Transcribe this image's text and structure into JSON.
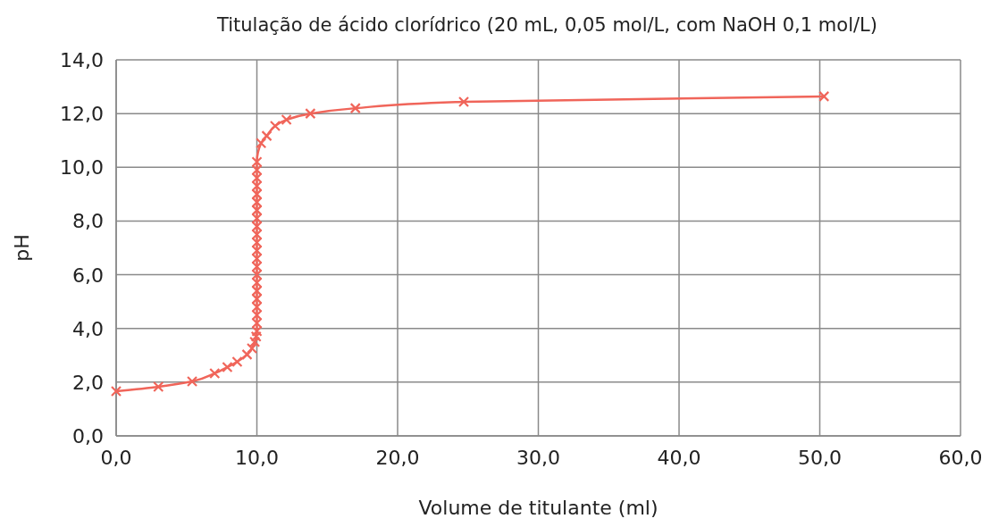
{
  "chart_data": {
    "type": "line",
    "title": "Titulação de ácido clorídrico (20 mL, 0,05 mol/L, com NaOH 0,1 mol/L)",
    "xlabel": "Volume de titulante (ml)",
    "ylabel": "pH",
    "xlim": [
      0,
      60
    ],
    "xticks": [
      {
        "value": 0,
        "label": "0,0"
      },
      {
        "value": 10,
        "label": "10,0"
      },
      {
        "value": 20,
        "label": "20,0"
      },
      {
        "value": 30,
        "label": "30,0"
      },
      {
        "value": 40,
        "label": "40,0"
      },
      {
        "value": 50,
        "label": "50,0"
      },
      {
        "value": 60,
        "label": "60,0"
      }
    ],
    "ylim": [
      0,
      14
    ],
    "yticks": [
      {
        "value": 0,
        "label": "0,0"
      },
      {
        "value": 2,
        "label": "2,0"
      },
      {
        "value": 4,
        "label": "4,0"
      },
      {
        "value": 6,
        "label": "6,0"
      },
      {
        "value": 8,
        "label": "8,0"
      },
      {
        "value": 10,
        "label": "10,0"
      },
      {
        "value": 12,
        "label": "12,0"
      },
      {
        "value": 14,
        "label": "14,0"
      }
    ],
    "grid": true,
    "marker": "cross",
    "line_style": "solid",
    "series": [
      {
        "color": "#f0655a",
        "x": [
          0,
          3.0,
          5.4,
          7.0,
          7.9,
          8.6,
          9.3,
          9.65,
          9.85,
          9.95,
          10,
          10,
          10,
          10,
          10,
          10,
          10,
          10,
          10,
          10,
          10,
          10,
          10,
          10,
          10,
          10,
          10,
          10,
          10,
          10,
          10,
          10,
          10.3,
          10.7,
          11.3,
          12.1,
          13.8,
          17.0,
          24.7,
          50.3
        ],
        "values": [
          1.66,
          1.83,
          2.03,
          2.33,
          2.56,
          2.76,
          3.03,
          3.26,
          3.5,
          3.7,
          3.9,
          4.2,
          4.5,
          4.8,
          5.1,
          5.4,
          5.7,
          6.0,
          6.3,
          6.6,
          6.9,
          7.2,
          7.5,
          7.8,
          8.1,
          8.4,
          8.7,
          9.0,
          9.3,
          9.6,
          9.9,
          10.2,
          10.9,
          11.17,
          11.54,
          11.77,
          12.0,
          12.2,
          12.44,
          12.64
        ]
      }
    ]
  }
}
